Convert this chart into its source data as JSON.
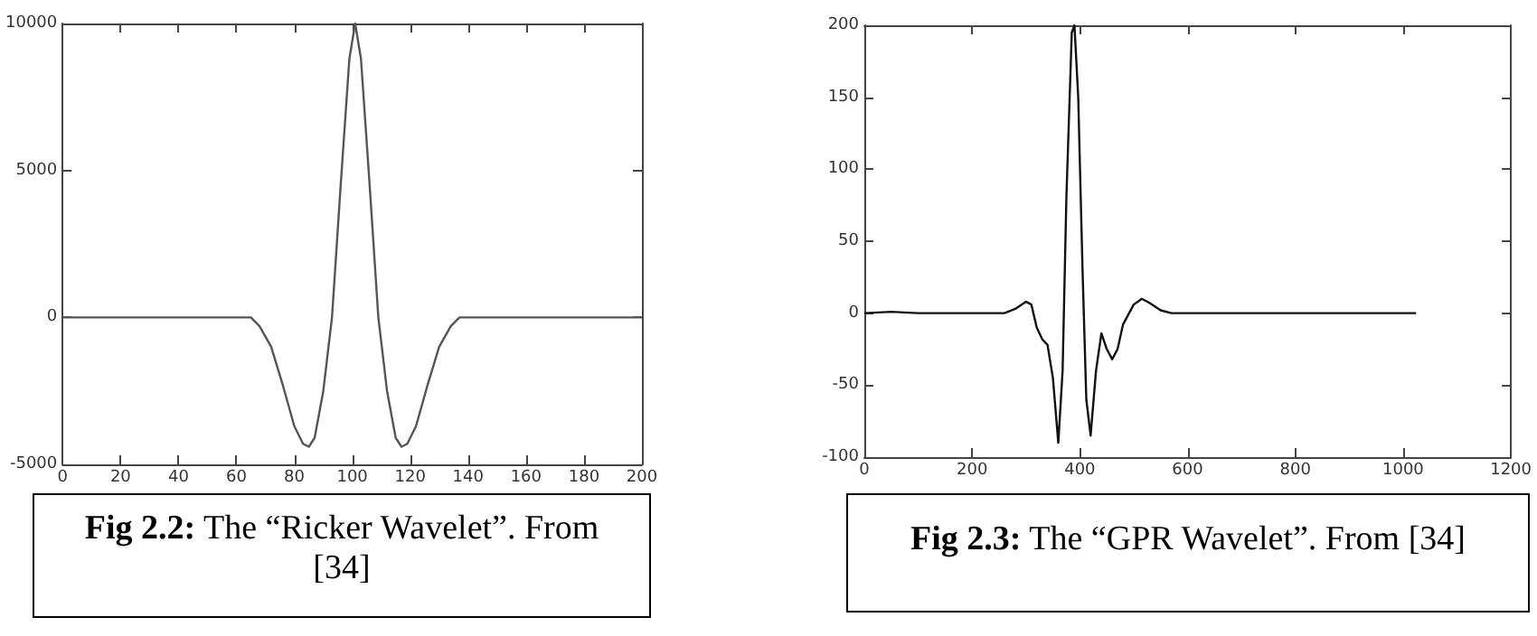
{
  "chart_data": [
    {
      "type": "line",
      "annotations": [
        "Fig 2.2:  The “Ricker Wavelet”. From [34]"
      ],
      "x": [
        0,
        65,
        68,
        72,
        76,
        80,
        83,
        85,
        87,
        90,
        93,
        96,
        99,
        101,
        103,
        106,
        109,
        112,
        115,
        117,
        119,
        122,
        126,
        130,
        134,
        137,
        200
      ],
      "series": [
        {
          "color": "#555555",
          "values": [
            0,
            0,
            -300,
            -1000,
            -2300,
            -3700,
            -4300,
            -4400,
            -4100,
            -2500,
            0,
            4500,
            8800,
            10000,
            8800,
            4500,
            0,
            -2500,
            -4100,
            -4400,
            -4300,
            -3700,
            -2300,
            -1000,
            -300,
            0,
            0
          ]
        }
      ],
      "xlim": [
        0,
        200
      ],
      "xticks": [
        0,
        20,
        40,
        60,
        80,
        100,
        120,
        140,
        160,
        180,
        200
      ],
      "ylim": [
        -5000,
        10000
      ],
      "yticks": [
        -5000,
        0,
        5000,
        10000
      ],
      "marker": "none"
    },
    {
      "type": "line",
      "annotations": [
        "Fig 2.3: The “GPR Wavelet”. From [34]"
      ],
      "x": [
        0,
        50,
        100,
        260,
        280,
        300,
        310,
        320,
        330,
        340,
        350,
        360,
        368,
        375,
        385,
        390,
        397,
        405,
        412,
        420,
        430,
        440,
        450,
        460,
        470,
        480,
        500,
        515,
        530,
        550,
        570,
        1024
      ],
      "series": [
        {
          "color": "#111111",
          "values": [
            0,
            1,
            0,
            0,
            3,
            8,
            6,
            -10,
            -18,
            -22,
            -45,
            -90,
            -40,
            80,
            195,
            200,
            150,
            30,
            -60,
            -85,
            -40,
            -14,
            -25,
            -32,
            -25,
            -8,
            6,
            10,
            7,
            2,
            0,
            0
          ]
        }
      ],
      "xlim": [
        0,
        1200
      ],
      "xticks": [
        0,
        200,
        400,
        600,
        800,
        1000,
        1200
      ],
      "ylim": [
        -100,
        200
      ],
      "yticks": [
        -100,
        -50,
        0,
        50,
        100,
        150,
        200
      ],
      "marker": "none"
    }
  ]
}
